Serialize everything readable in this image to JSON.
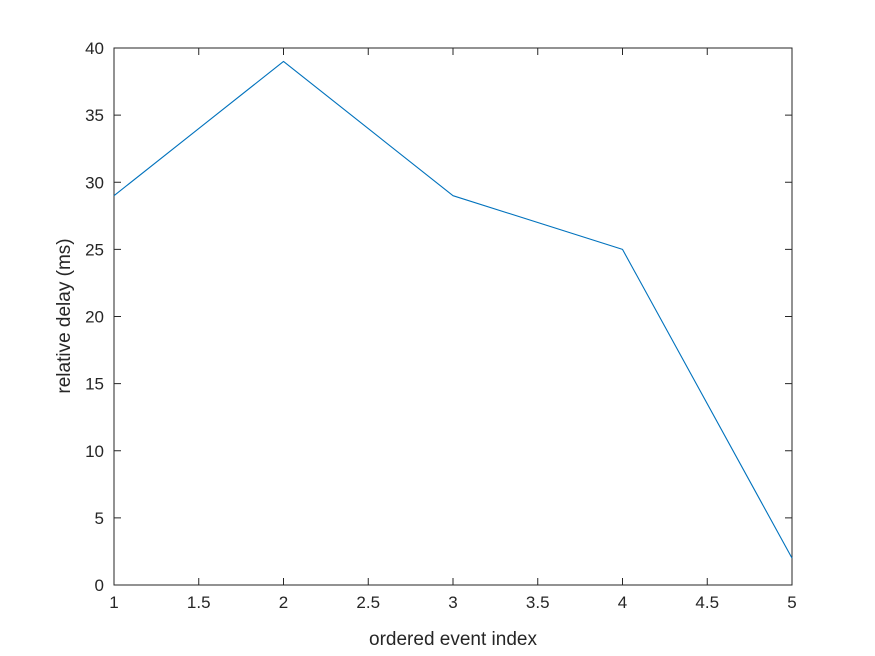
{
  "chart_data": {
    "type": "line",
    "title": "",
    "xlabel": "ordered event index",
    "ylabel": "relative delay (ms)",
    "xlim": [
      1,
      5
    ],
    "ylim": [
      0,
      40
    ],
    "xticks": [
      1,
      1.5,
      2,
      2.5,
      3,
      3.5,
      4,
      4.5,
      5
    ],
    "xtick_labels": [
      "1",
      "1.5",
      "2",
      "2.5",
      "3",
      "3.5",
      "4",
      "4.5",
      "5"
    ],
    "yticks": [
      0,
      5,
      10,
      15,
      20,
      25,
      30,
      35,
      40
    ],
    "ytick_labels": [
      "0",
      "5",
      "10",
      "15",
      "20",
      "25",
      "30",
      "35",
      "40"
    ],
    "grid": false,
    "box": true,
    "series": [
      {
        "x": [
          1,
          2,
          3,
          4,
          5
        ],
        "values": [
          29,
          39,
          29,
          25,
          2
        ],
        "color": "#0072BD"
      }
    ]
  }
}
